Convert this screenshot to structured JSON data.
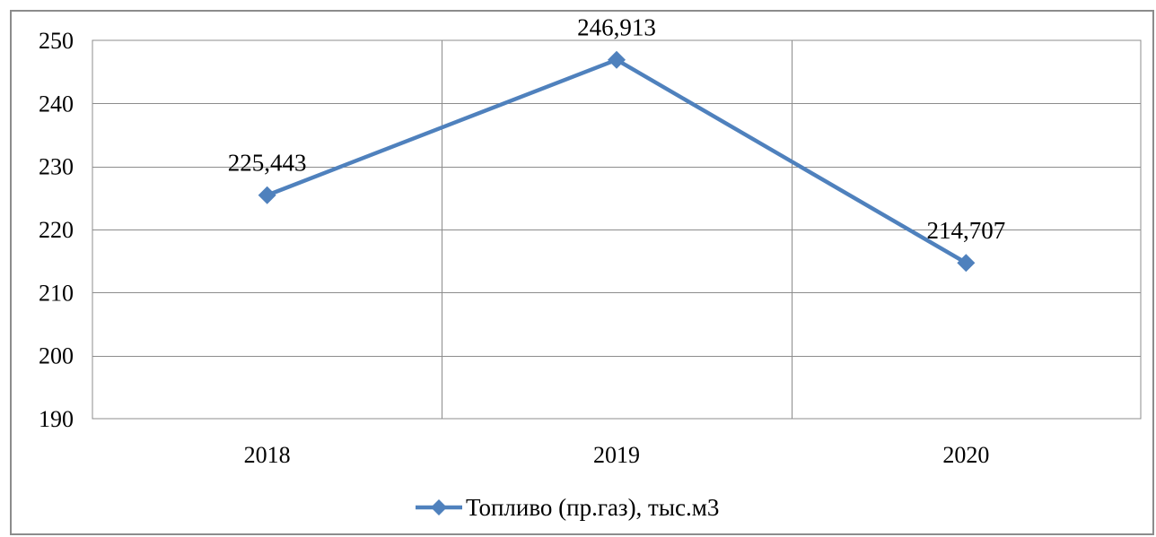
{
  "chart_data": {
    "type": "line",
    "categories": [
      "2018",
      "2019",
      "2020"
    ],
    "series": [
      {
        "name": "Топливо (пр.газ), тыс.м3",
        "values": [
          225.443,
          246.913,
          214.707
        ],
        "labels": [
          "225,443",
          "246,913",
          "214,707"
        ],
        "color": "#4F81BD",
        "marker": "diamond"
      }
    ],
    "title": "",
    "xlabel": "",
    "ylabel": "",
    "ylim": [
      190,
      250
    ],
    "yticks": [
      190,
      200,
      210,
      220,
      230,
      240,
      250
    ],
    "ytick_labels": [
      "190",
      "200",
      "210",
      "220",
      "230",
      "240",
      "250"
    ],
    "grid": true,
    "legend_position": "bottom",
    "colors": {
      "grid": "#8c8c8c",
      "frame": "#8c8c8c",
      "series": "#4F81BD"
    }
  }
}
